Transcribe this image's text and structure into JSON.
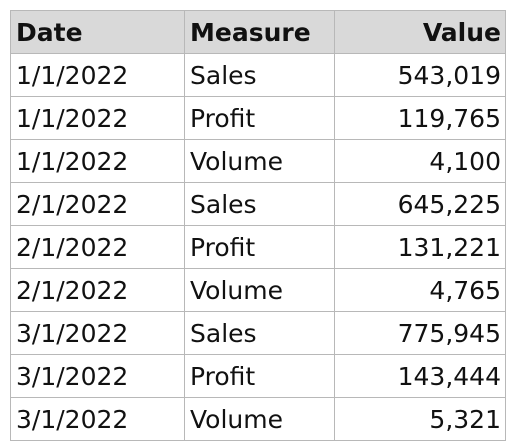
{
  "table": {
    "columns": [
      "Date",
      "Measure",
      "Value"
    ],
    "rows": [
      [
        "1/1/2022",
        "Sales",
        "543,019"
      ],
      [
        "1/1/2022",
        "Profit",
        "119,765"
      ],
      [
        "1/1/2022",
        "Volume",
        "4,100"
      ],
      [
        "2/1/2022",
        "Sales",
        "645,225"
      ],
      [
        "2/1/2022",
        "Profit",
        "131,221"
      ],
      [
        "2/1/2022",
        "Volume",
        "4,765"
      ],
      [
        "3/1/2022",
        "Sales",
        "775,945"
      ],
      [
        "3/1/2022",
        "Profit",
        "143,444"
      ],
      [
        "3/1/2022",
        "Volume",
        "5,321"
      ]
    ]
  },
  "colors": {
    "header_background": "#d9d9d9",
    "grid_lines": "#b8b8b8",
    "text": "#111111"
  }
}
